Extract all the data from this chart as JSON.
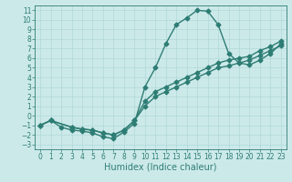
{
  "xlabel": "Humidex (Indice chaleur)",
  "xlim": [
    -0.5,
    23.5
  ],
  "ylim": [
    -3.5,
    11.5
  ],
  "xticks": [
    0,
    1,
    2,
    3,
    4,
    5,
    6,
    7,
    8,
    9,
    10,
    11,
    12,
    13,
    14,
    15,
    16,
    17,
    18,
    19,
    20,
    21,
    22,
    23
  ],
  "yticks": [
    -3,
    -2,
    -1,
    0,
    1,
    2,
    3,
    4,
    5,
    6,
    7,
    8,
    9,
    10,
    11
  ],
  "bg_color": "#cce9e9",
  "line_color": "#2d7d74",
  "grid_color": "#b0d8d8",
  "line1_x": [
    0,
    1,
    2,
    3,
    4,
    5,
    6,
    7,
    8,
    9,
    10,
    11,
    12,
    13,
    14,
    15,
    16,
    17,
    18,
    19,
    20,
    21,
    22,
    23
  ],
  "line1_y": [
    -1.0,
    -0.5,
    -1.2,
    -1.5,
    -1.6,
    -1.8,
    -2.2,
    -2.4,
    -1.7,
    -0.8,
    3.0,
    5.0,
    7.5,
    9.5,
    10.2,
    11.0,
    10.9,
    9.5,
    6.5,
    5.5,
    5.3,
    5.8,
    6.5,
    7.5
  ],
  "line2_x": [
    0,
    1,
    3,
    4,
    5,
    6,
    7,
    8,
    9,
    10,
    11,
    12,
    13,
    14,
    15,
    16,
    17,
    18,
    19,
    20,
    21,
    22,
    23
  ],
  "line2_y": [
    -1.0,
    -0.5,
    -1.2,
    -1.4,
    -1.5,
    -1.8,
    -2.0,
    -1.5,
    -0.5,
    1.5,
    2.5,
    3.0,
    3.5,
    4.0,
    4.5,
    5.0,
    5.5,
    5.8,
    6.0,
    6.2,
    6.8,
    7.2,
    7.8
  ],
  "line3_x": [
    0,
    1,
    3,
    4,
    5,
    6,
    7,
    8,
    9,
    10,
    11,
    12,
    13,
    14,
    15,
    16,
    17,
    18,
    19,
    20,
    21,
    22,
    23
  ],
  "line3_y": [
    -1.0,
    -0.5,
    -1.2,
    -1.4,
    -1.5,
    -1.8,
    -2.0,
    -1.5,
    -0.5,
    1.0,
    2.0,
    2.5,
    3.0,
    3.5,
    4.0,
    4.5,
    5.0,
    5.2,
    5.5,
    5.8,
    6.3,
    6.8,
    7.3
  ],
  "marker": "D",
  "markersize": 2.5,
  "linewidth": 1.0,
  "tick_fontsize": 5.5,
  "label_fontsize": 7
}
